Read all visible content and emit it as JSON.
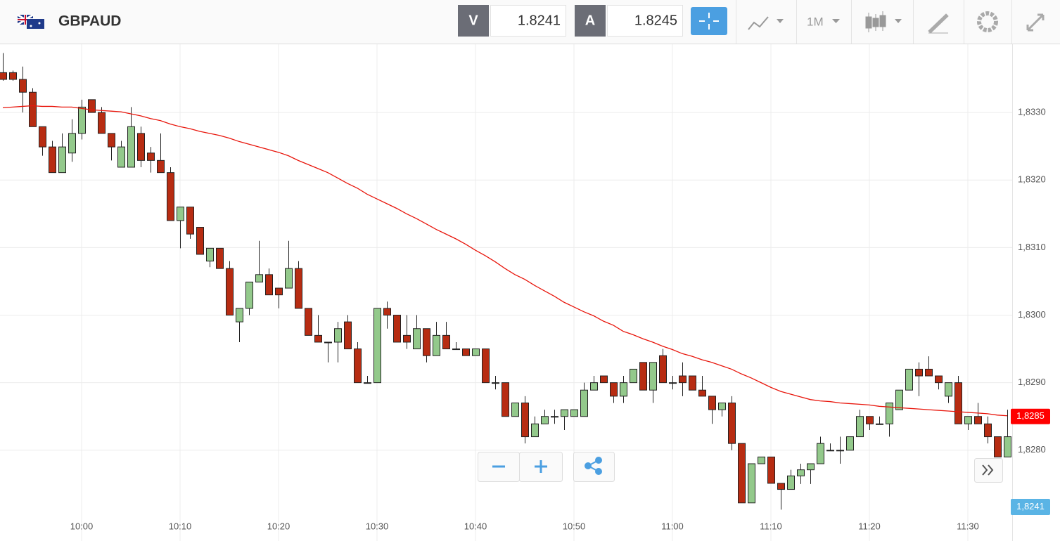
{
  "header": {
    "symbol": "GBPAUD",
    "sell_label": "V",
    "sell_price": "1.8241",
    "buy_label": "A",
    "buy_price": "1.8245",
    "timeframe": "1M"
  },
  "chart_data": {
    "type": "candlestick",
    "categories": [
      null,
      null,
      null,
      null,
      null,
      null,
      null,
      null,
      "10:00",
      null,
      null,
      null,
      null,
      null,
      null,
      null,
      null,
      null,
      "10:10",
      null,
      null,
      null,
      null,
      null,
      null,
      null,
      null,
      null,
      "10:20",
      null,
      null,
      null,
      null,
      null,
      null,
      null,
      null,
      null,
      "10:30",
      null,
      null,
      null,
      null,
      null,
      null,
      null,
      null,
      null,
      "10:40",
      null,
      null,
      null,
      null,
      null,
      null,
      null,
      null,
      null,
      "10:50",
      null,
      null,
      null,
      null,
      null,
      null,
      null,
      null,
      null,
      "11:00",
      null,
      null,
      null,
      null,
      null,
      null,
      null,
      null,
      null,
      "11:10",
      null,
      null,
      null,
      null,
      null,
      null,
      null,
      null,
      null,
      "11:20",
      null,
      null,
      null,
      null,
      null,
      null,
      null,
      null,
      null,
      "11:30",
      null,
      null,
      null,
      null
    ],
    "open": [
      1.83359,
      1.83359,
      1.83349,
      1.8333,
      1.83279,
      1.83249,
      1.83211,
      1.8324,
      1.83269,
      1.83319,
      1.833,
      1.83269,
      1.83219,
      1.83219,
      1.83269,
      1.8324,
      1.83229,
      1.83211,
      1.8314,
      1.8316,
      1.8313,
      1.8308,
      1.83099,
      1.83069,
      1.8299,
      1.8301,
      1.83049,
      1.8306,
      1.8304,
      1.8304,
      1.83069,
      1.8301,
      1.8297,
      1.8296,
      1.8296,
      1.8299,
      1.8295,
      1.829,
      1.829,
      1.8301,
      1.83,
      1.8297,
      1.8295,
      1.8298,
      1.8294,
      1.8297,
      1.8295,
      1.8295,
      1.8294,
      1.8295,
      1.829,
      1.829,
      1.8285,
      1.8287,
      1.8282,
      1.82839,
      1.8285,
      1.8285,
      1.8285,
      1.8285,
      1.82889,
      1.8291,
      1.829,
      1.8288,
      1.829,
      1.8293,
      1.82889,
      1.8294,
      1.829,
      1.8291,
      1.8291,
      1.82889,
      1.8288,
      1.8286,
      1.8287,
      1.8281,
      1.82722,
      1.8278,
      1.8279,
      1.82751,
      1.82742,
      1.82762,
      1.82771,
      1.8278,
      1.828,
      1.828,
      1.828,
      1.8282,
      1.8285,
      1.82839,
      1.82839,
      1.8286,
      1.82889,
      1.8292,
      1.8292,
      1.8291,
      1.8288,
      1.829,
      1.82839,
      1.8285,
      1.82839,
      1.8282,
      1.8279
    ],
    "high": [
      1.83388,
      1.83362,
      1.83368,
      1.83336,
      1.83279,
      1.83258,
      1.83269,
      1.8329,
      1.83319,
      1.83319,
      1.83308,
      1.83269,
      1.83258,
      1.83308,
      1.83279,
      1.83249,
      1.83269,
      1.83219,
      1.8316,
      1.8316,
      1.8313,
      1.83099,
      1.83099,
      1.8308,
      1.8301,
      1.83049,
      1.8311,
      1.83069,
      1.8304,
      1.8311,
      1.8308,
      1.8301,
      1.83,
      1.8296,
      1.8299,
      1.83,
      1.8296,
      1.8291,
      1.8301,
      1.8302,
      1.83,
      1.83,
      1.83,
      1.8298,
      1.8299,
      1.8299,
      1.8296,
      1.8295,
      1.8295,
      1.8295,
      1.8291,
      1.829,
      1.8287,
      1.8288,
      1.8285,
      1.8286,
      1.8286,
      1.8286,
      1.8286,
      1.829,
      1.8291,
      1.8291,
      1.829,
      1.8291,
      1.8292,
      1.8293,
      1.8293,
      1.8295,
      1.8291,
      1.8293,
      1.8291,
      1.8291,
      1.8288,
      1.8287,
      1.8288,
      1.8281,
      1.8278,
      1.8279,
      1.8279,
      1.82751,
      1.82771,
      1.8278,
      1.8278,
      1.8282,
      1.8281,
      1.8282,
      1.8282,
      1.8286,
      1.8285,
      1.8285,
      1.8287,
      1.82889,
      1.8292,
      1.8293,
      1.82939,
      1.8291,
      1.829,
      1.8291,
      1.8285,
      1.8287,
      1.8285,
      1.8282,
      1.8286
    ],
    "low": [
      1.83347,
      1.83347,
      1.833,
      1.83279,
      1.83236,
      1.83211,
      1.83211,
      1.83227,
      1.8326,
      1.833,
      1.83269,
      1.83229,
      1.83219,
      1.83219,
      1.83219,
      1.83211,
      1.83211,
      1.8314,
      1.83099,
      1.83113,
      1.8309,
      1.83071,
      1.83069,
      1.83,
      1.8296,
      1.83,
      1.83049,
      1.8303,
      1.8301,
      1.8304,
      1.8301,
      1.8297,
      1.8296,
      1.8293,
      1.8293,
      1.8295,
      1.829,
      1.829,
      1.829,
      1.8298,
      1.8296,
      1.8295,
      1.8295,
      1.8293,
      1.8294,
      1.8295,
      1.8295,
      1.8294,
      1.8294,
      1.829,
      1.8289,
      1.8285,
      1.8285,
      1.8281,
      1.8282,
      1.82839,
      1.82839,
      1.8283,
      1.8285,
      1.8285,
      1.82889,
      1.829,
      1.8287,
      1.8287,
      1.829,
      1.82889,
      1.8287,
      1.829,
      1.8289,
      1.8288,
      1.82889,
      1.8288,
      1.82839,
      1.8285,
      1.828,
      1.82722,
      1.82722,
      1.8278,
      1.82751,
      1.82712,
      1.82742,
      1.8275,
      1.8275,
      1.8278,
      1.828,
      1.8278,
      1.828,
      1.8282,
      1.8283,
      1.82839,
      1.8282,
      1.8286,
      1.82889,
      1.8288,
      1.8291,
      1.8289,
      1.8287,
      1.82839,
      1.8283,
      1.82839,
      1.8281,
      1.8279,
      1.8279
    ],
    "close": [
      1.83349,
      1.83349,
      1.8333,
      1.83279,
      1.83249,
      1.83211,
      1.83249,
      1.83269,
      1.83308,
      1.833,
      1.83269,
      1.83249,
      1.83249,
      1.83279,
      1.83229,
      1.83229,
      1.83211,
      1.8314,
      1.8316,
      1.8312,
      1.8309,
      1.83099,
      1.83069,
      1.83,
      1.8301,
      1.83049,
      1.8306,
      1.8303,
      1.8303,
      1.83069,
      1.8301,
      1.8297,
      1.8296,
      1.8296,
      1.8298,
      1.8295,
      1.829,
      1.829,
      1.8301,
      1.83,
      1.8296,
      1.8296,
      1.8298,
      1.8294,
      1.8297,
      1.8295,
      1.8295,
      1.8294,
      1.8295,
      1.829,
      1.829,
      1.8285,
      1.8287,
      1.8282,
      1.82839,
      1.8285,
      1.8285,
      1.8286,
      1.8286,
      1.82889,
      1.829,
      1.829,
      1.8288,
      1.829,
      1.8292,
      1.82889,
      1.8293,
      1.829,
      1.829,
      1.829,
      1.82889,
      1.8288,
      1.8286,
      1.8287,
      1.8281,
      1.82722,
      1.8278,
      1.8279,
      1.82751,
      1.82742,
      1.82762,
      1.82771,
      1.8278,
      1.8281,
      1.828,
      1.828,
      1.8282,
      1.8285,
      1.82839,
      1.82839,
      1.8287,
      1.82889,
      1.8292,
      1.8291,
      1.8291,
      1.829,
      1.829,
      1.82839,
      1.8285,
      1.82839,
      1.8282,
      1.8279,
      1.8282
    ],
    "up_color": "#93c98b",
    "down_color": "#b72c12",
    "moving_average": {
      "color": "#e8160c",
      "values": [
        1.83307,
        1.83308,
        1.83309,
        1.8331,
        1.83309,
        1.83309,
        1.83308,
        1.83308,
        1.83306,
        1.83304,
        1.83303,
        1.83302,
        1.83301,
        1.83298,
        1.83295,
        1.83291,
        1.83288,
        1.83283,
        1.83279,
        1.83276,
        1.83272,
        1.83269,
        1.83266,
        1.83262,
        1.83257,
        1.83253,
        1.83249,
        1.83245,
        1.83241,
        1.83236,
        1.83229,
        1.83223,
        1.83217,
        1.83211,
        1.83203,
        1.83195,
        1.83188,
        1.83179,
        1.83172,
        1.83165,
        1.83158,
        1.8315,
        1.83143,
        1.83135,
        1.83127,
        1.8312,
        1.83113,
        1.83105,
        1.83096,
        1.83088,
        1.83079,
        1.83069,
        1.8306,
        1.83053,
        1.83044,
        1.83036,
        1.83028,
        1.83019,
        1.83012,
        1.83005,
        1.82999,
        1.82991,
        1.82985,
        1.82976,
        1.82971,
        1.82965,
        1.8296,
        1.82954,
        1.82949,
        1.82943,
        1.82939,
        1.82934,
        1.8293,
        1.82925,
        1.8292,
        1.82913,
        1.82907,
        1.829,
        1.82893,
        1.82887,
        1.82883,
        1.82879,
        1.82875,
        1.82873,
        1.82872,
        1.8287,
        1.82869,
        1.82868,
        1.82867,
        1.82865,
        1.82864,
        1.82863,
        1.82862,
        1.82861,
        1.8286,
        1.82859,
        1.82858,
        1.82857,
        1.82856,
        1.82855,
        1.82854,
        1.82852,
        1.82851
      ]
    },
    "price_marker": {
      "value": 1.8285,
      "label": "1,8285",
      "color": "#ff0000"
    },
    "bid_marker": {
      "label": "1,8241",
      "color": "#5ab4e5"
    },
    "ylim": [
      1.82702,
      1.83401
    ],
    "yticks": [
      {
        "value": 1.833,
        "label": "1,8330"
      },
      {
        "value": 1.832,
        "label": "1,8320"
      },
      {
        "value": 1.831,
        "label": "1,8310"
      },
      {
        "value": 1.83,
        "label": "1,8300"
      },
      {
        "value": 1.829,
        "label": "1,8290"
      },
      {
        "value": 1.828,
        "label": "1,8280"
      }
    ],
    "grid": true
  }
}
